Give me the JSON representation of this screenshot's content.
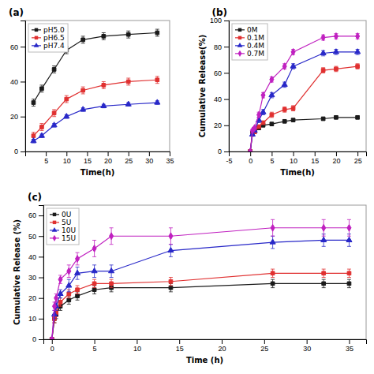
{
  "chart_data": [
    {
      "type": "line",
      "title": "(a)",
      "xlabel": "Time(h)",
      "x": [
        2,
        4,
        7,
        10,
        14,
        19,
        25,
        32
      ],
      "series": [
        {
          "name": "pH5.0",
          "color": "#1a1a1a",
          "marker": "square",
          "values": [
            28,
            36,
            47,
            58,
            64,
            66,
            67,
            68
          ],
          "errors": [
            2,
            2,
            2,
            2,
            2,
            2,
            2,
            2
          ]
        },
        {
          "name": "pH6.5",
          "color": "#e03030",
          "marker": "square",
          "values": [
            9,
            14,
            22,
            30,
            35,
            38,
            40,
            41
          ],
          "errors": [
            2,
            2,
            2,
            2,
            2,
            2,
            2,
            2
          ]
        },
        {
          "name": "pH7.4",
          "color": "#2828c8",
          "marker": "triangle",
          "values": [
            6,
            9,
            15,
            20,
            24,
            26,
            27,
            28
          ],
          "errors": [
            1,
            1,
            1,
            1,
            1,
            1,
            1,
            1
          ]
        }
      ],
      "xlim": [
        0,
        35
      ],
      "ylim": [
        0,
        75
      ],
      "xticks": [
        5,
        10,
        15,
        20,
        25,
        30,
        35
      ],
      "yticks": [
        0,
        20,
        40,
        60
      ],
      "grid": false,
      "legend": "upper left"
    },
    {
      "type": "line",
      "title": "(b)",
      "xlabel": "Time(h)",
      "ylabel": "Cumulative Release(%)",
      "x": [
        0,
        0.5,
        1,
        2,
        3,
        5,
        8,
        10,
        17,
        20,
        25
      ],
      "series": [
        {
          "name": "0M",
          "color": "#1a1a1a",
          "marker": "square",
          "values": [
            0,
            14,
            15,
            18,
            20,
            21,
            23,
            24,
            25,
            26,
            26
          ],
          "errors": [
            0,
            1,
            1,
            1,
            1,
            1,
            1,
            1,
            1,
            1,
            1
          ]
        },
        {
          "name": "0.1M",
          "color": "#e03030",
          "marker": "square",
          "values": [
            0,
            13,
            15,
            19,
            22,
            28,
            32,
            33,
            62,
            63,
            65
          ],
          "errors": [
            0,
            1,
            1,
            1,
            1,
            2,
            2,
            2,
            2,
            2,
            2
          ]
        },
        {
          "name": "0.4M",
          "color": "#2828c8",
          "marker": "triangle",
          "values": [
            0,
            13,
            16,
            24,
            30,
            43,
            51,
            65,
            75,
            76,
            76
          ],
          "errors": [
            0,
            1,
            1,
            2,
            2,
            2,
            2,
            2,
            2,
            2,
            2
          ]
        },
        {
          "name": "0.7M",
          "color": "#c020c0",
          "marker": "diamond",
          "values": [
            0,
            16,
            18,
            28,
            43,
            55,
            65,
            76,
            87,
            88,
            88
          ],
          "errors": [
            0,
            1,
            1,
            2,
            2,
            2,
            2,
            2,
            2,
            2,
            2
          ]
        }
      ],
      "xlim": [
        -5,
        27
      ],
      "ylim": [
        0,
        100
      ],
      "xticks": [
        -5,
        0,
        5,
        10,
        15,
        20,
        25
      ],
      "yticks": [
        0,
        20,
        40,
        60,
        80,
        100
      ],
      "grid": false,
      "legend": "upper left"
    },
    {
      "type": "line",
      "title": "(c)",
      "xlabel": "Time (h)",
      "ylabel": "Cumulative Release (%)",
      "x": [
        0,
        0.3,
        0.5,
        1,
        2,
        3,
        5,
        7,
        14,
        26,
        32,
        35
      ],
      "series": [
        {
          "name": "0U",
          "color": "#1a1a1a",
          "marker": "square",
          "values": [
            0,
            10,
            12,
            16,
            19,
            21,
            24,
            25,
            25,
            27,
            27,
            27
          ],
          "errors": [
            0,
            2,
            2,
            2,
            2,
            2,
            2,
            2,
            2,
            2,
            2,
            2
          ]
        },
        {
          "name": "5U",
          "color": "#e03030",
          "marker": "square",
          "values": [
            0,
            10,
            13,
            18,
            22,
            24,
            27,
            27,
            28,
            32,
            32,
            32
          ],
          "errors": [
            0,
            2,
            2,
            2,
            2,
            2,
            2,
            2,
            2,
            2,
            2,
            2
          ]
        },
        {
          "name": "10U",
          "color": "#2828c8",
          "marker": "triangle",
          "values": [
            0,
            12,
            16,
            22,
            26,
            32,
            33,
            33,
            43,
            47,
            48,
            48
          ],
          "errors": [
            0,
            2,
            2,
            2,
            3,
            3,
            3,
            3,
            3,
            3,
            3,
            3
          ]
        },
        {
          "name": "15U",
          "color": "#c020c0",
          "marker": "diamond",
          "values": [
            0,
            16,
            20,
            29,
            33,
            39,
            44,
            50,
            50,
            54,
            54,
            54
          ],
          "errors": [
            0,
            2,
            2,
            2,
            3,
            3,
            4,
            4,
            4,
            4,
            4,
            4
          ]
        }
      ],
      "xlim": [
        -1,
        37
      ],
      "ylim": [
        0,
        65
      ],
      "xticks": [
        0,
        5,
        10,
        15,
        20,
        25,
        30,
        35
      ],
      "yticks": [
        0,
        10,
        20,
        30,
        40,
        50,
        60
      ],
      "grid": false,
      "legend": "upper left"
    }
  ]
}
